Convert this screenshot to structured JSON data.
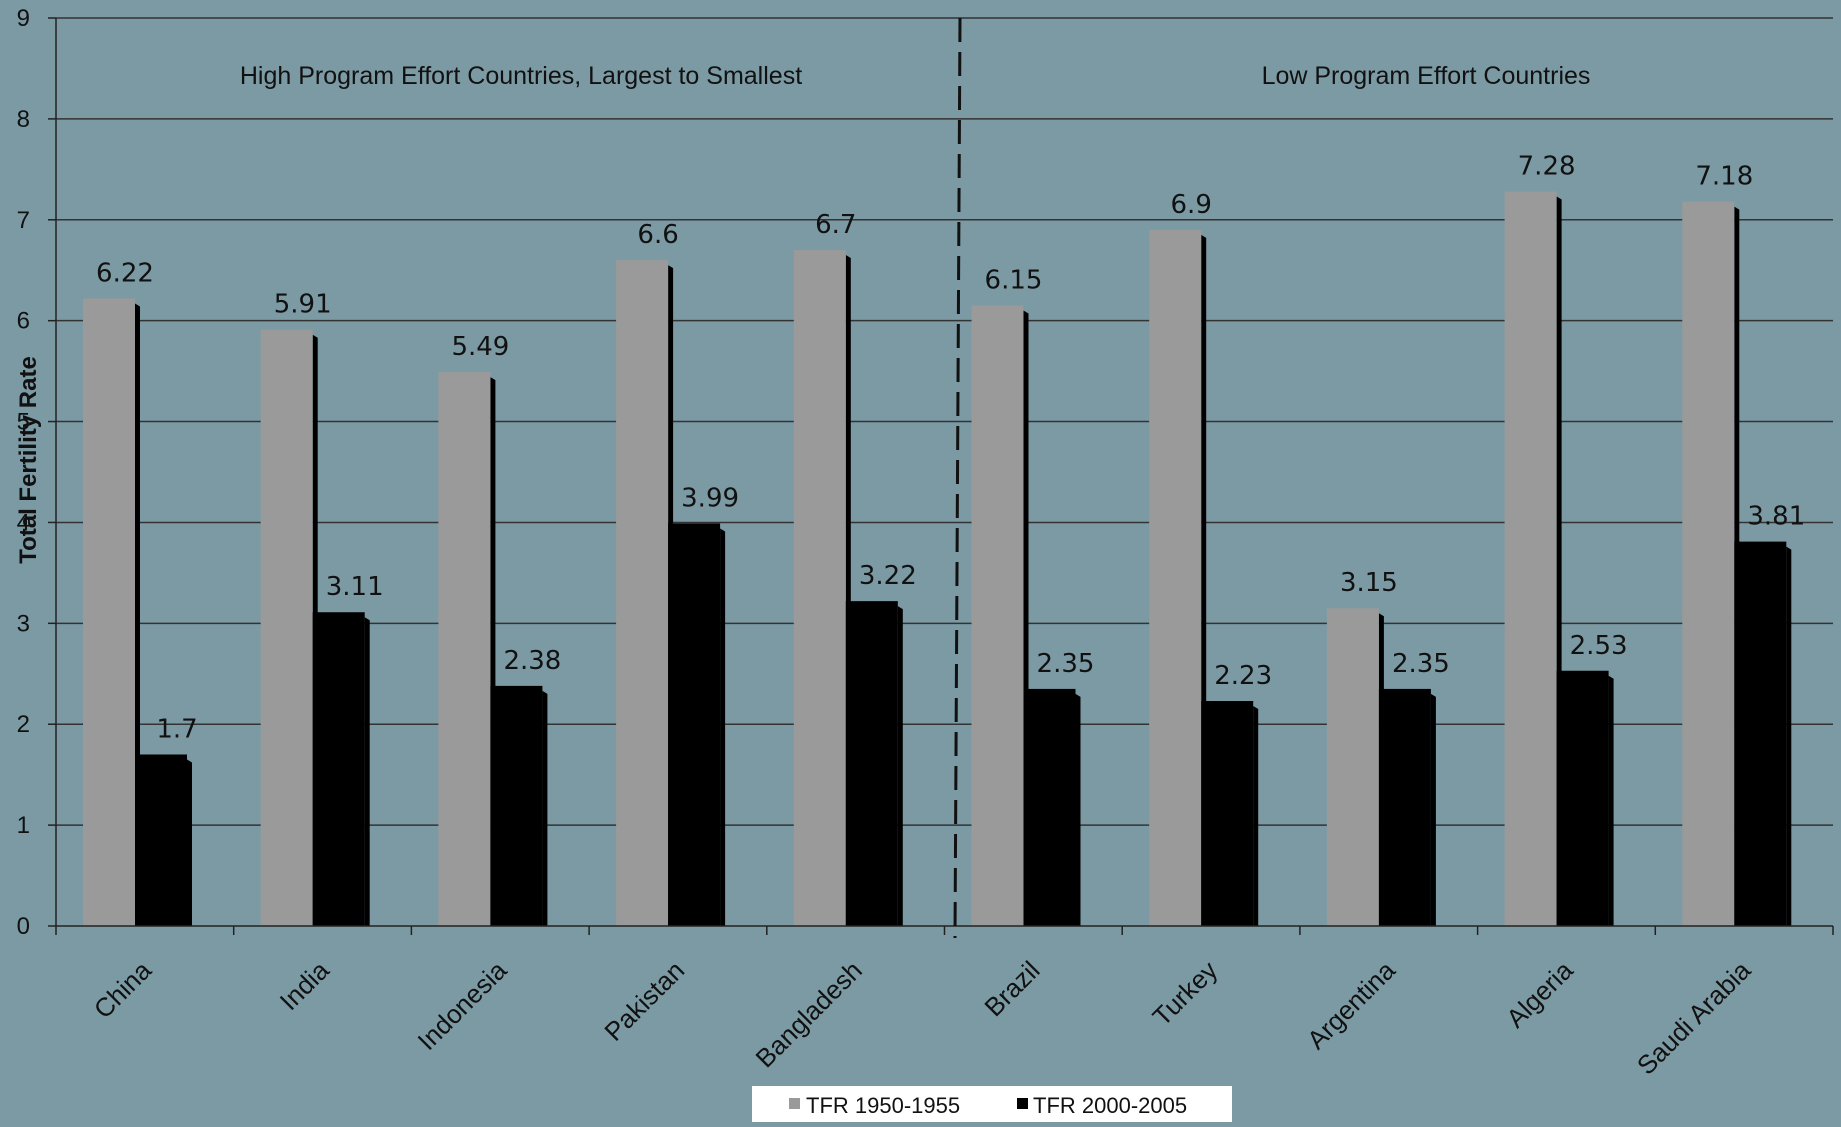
{
  "chart_data": {
    "type": "bar",
    "categories": [
      "China",
      "India",
      "Indonesia",
      "Pakistan",
      "Bangladesh",
      "Brazil",
      "Turkey",
      "Argentina",
      "Algeria",
      "Saudi Arabia"
    ],
    "series": [
      {
        "name": "TFR 1950-1955",
        "values": [
          6.22,
          5.91,
          5.49,
          6.6,
          6.7,
          6.15,
          6.9,
          3.15,
          7.28,
          7.18
        ],
        "color": "#9a9a9a"
      },
      {
        "name": "TFR 2000-2005",
        "values": [
          1.7,
          3.11,
          2.38,
          3.99,
          3.22,
          2.35,
          2.23,
          2.35,
          2.53,
          3.81
        ],
        "color": "#000000"
      }
    ],
    "ylabel": "Total Fertility Rate",
    "xlabel": "",
    "ylim": [
      0,
      9
    ],
    "yticks": [
      "0",
      "1",
      "2",
      "3",
      "4",
      "5",
      "6",
      "7",
      "8",
      "9"
    ],
    "grid": true,
    "legend_position": "bottom-center",
    "annotations": [
      "High Program Effort Countries, Largest to Smallest",
      "Low Program Effort Countries"
    ],
    "group_divider_after_category": "Bangladesh"
  },
  "colors": {
    "background": "#7c9aa4",
    "gridline": "#333333",
    "legend_background": "#ffffff"
  }
}
